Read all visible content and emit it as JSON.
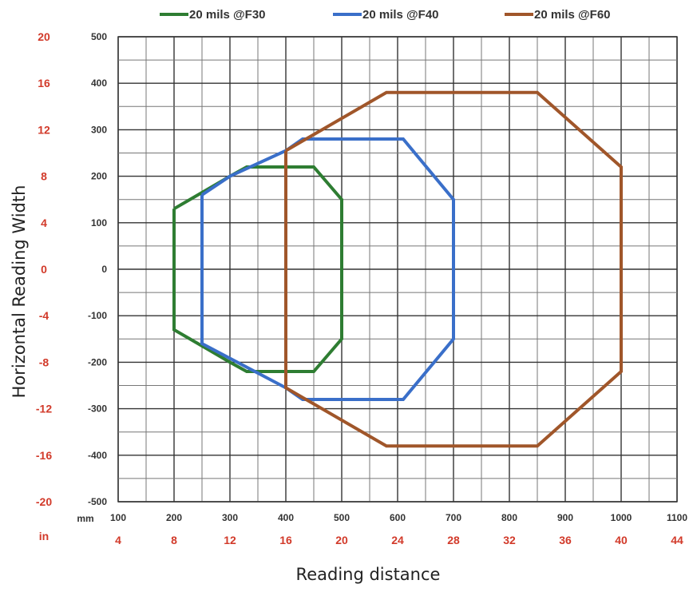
{
  "chart_data": {
    "type": "line",
    "title": "",
    "xlabel": "Reading distance",
    "ylabel": "Horizontal Reading Width",
    "x_unit_label": "mm",
    "x_secondary_unit_label": "in",
    "xlim": [
      100,
      1100
    ],
    "ylim": [
      -500,
      500
    ],
    "x_ticks": [
      "100",
      "200",
      "300",
      "400",
      "500",
      "600",
      "700",
      "800",
      "900",
      "1000",
      "1100"
    ],
    "x_ticks_in": [
      "4",
      "8",
      "12",
      "16",
      "20",
      "24",
      "28",
      "32",
      "36",
      "40",
      "44"
    ],
    "y_ticks": [
      "500",
      "400",
      "300",
      "200",
      "100",
      "0",
      "-100",
      "-200",
      "-300",
      "-400",
      "-500"
    ],
    "y_ticks_in": [
      "20",
      "16",
      "12",
      "8",
      "4",
      "0",
      "-4",
      "-8",
      "-12",
      "-16",
      "-20"
    ],
    "grid": true,
    "legend_position": "top",
    "series": [
      {
        "name": "20 mils @F30",
        "color": "#2e7d32",
        "points": [
          [
            200,
            130
          ],
          [
            250,
            165
          ],
          [
            300,
            200
          ],
          [
            330,
            220
          ],
          [
            450,
            220
          ],
          [
            500,
            150
          ],
          [
            500,
            -150
          ],
          [
            450,
            -220
          ],
          [
            330,
            -220
          ],
          [
            300,
            -200
          ],
          [
            250,
            -165
          ],
          [
            200,
            -130
          ],
          [
            200,
            130
          ]
        ]
      },
      {
        "name": "20 mils @F40",
        "color": "#3a6fc9",
        "points": [
          [
            250,
            160
          ],
          [
            300,
            200
          ],
          [
            400,
            255
          ],
          [
            430,
            280
          ],
          [
            610,
            280
          ],
          [
            700,
            150
          ],
          [
            700,
            -150
          ],
          [
            610,
            -280
          ],
          [
            430,
            -280
          ],
          [
            400,
            -255
          ],
          [
            250,
            -160
          ],
          [
            250,
            160
          ]
        ]
      },
      {
        "name": "20 mils @F60",
        "color": "#a0562a",
        "points": [
          [
            400,
            255
          ],
          [
            580,
            380
          ],
          [
            850,
            380
          ],
          [
            1000,
            220
          ],
          [
            1000,
            -220
          ],
          [
            850,
            -380
          ],
          [
            580,
            -380
          ],
          [
            400,
            -255
          ],
          [
            400,
            255
          ]
        ]
      }
    ]
  }
}
